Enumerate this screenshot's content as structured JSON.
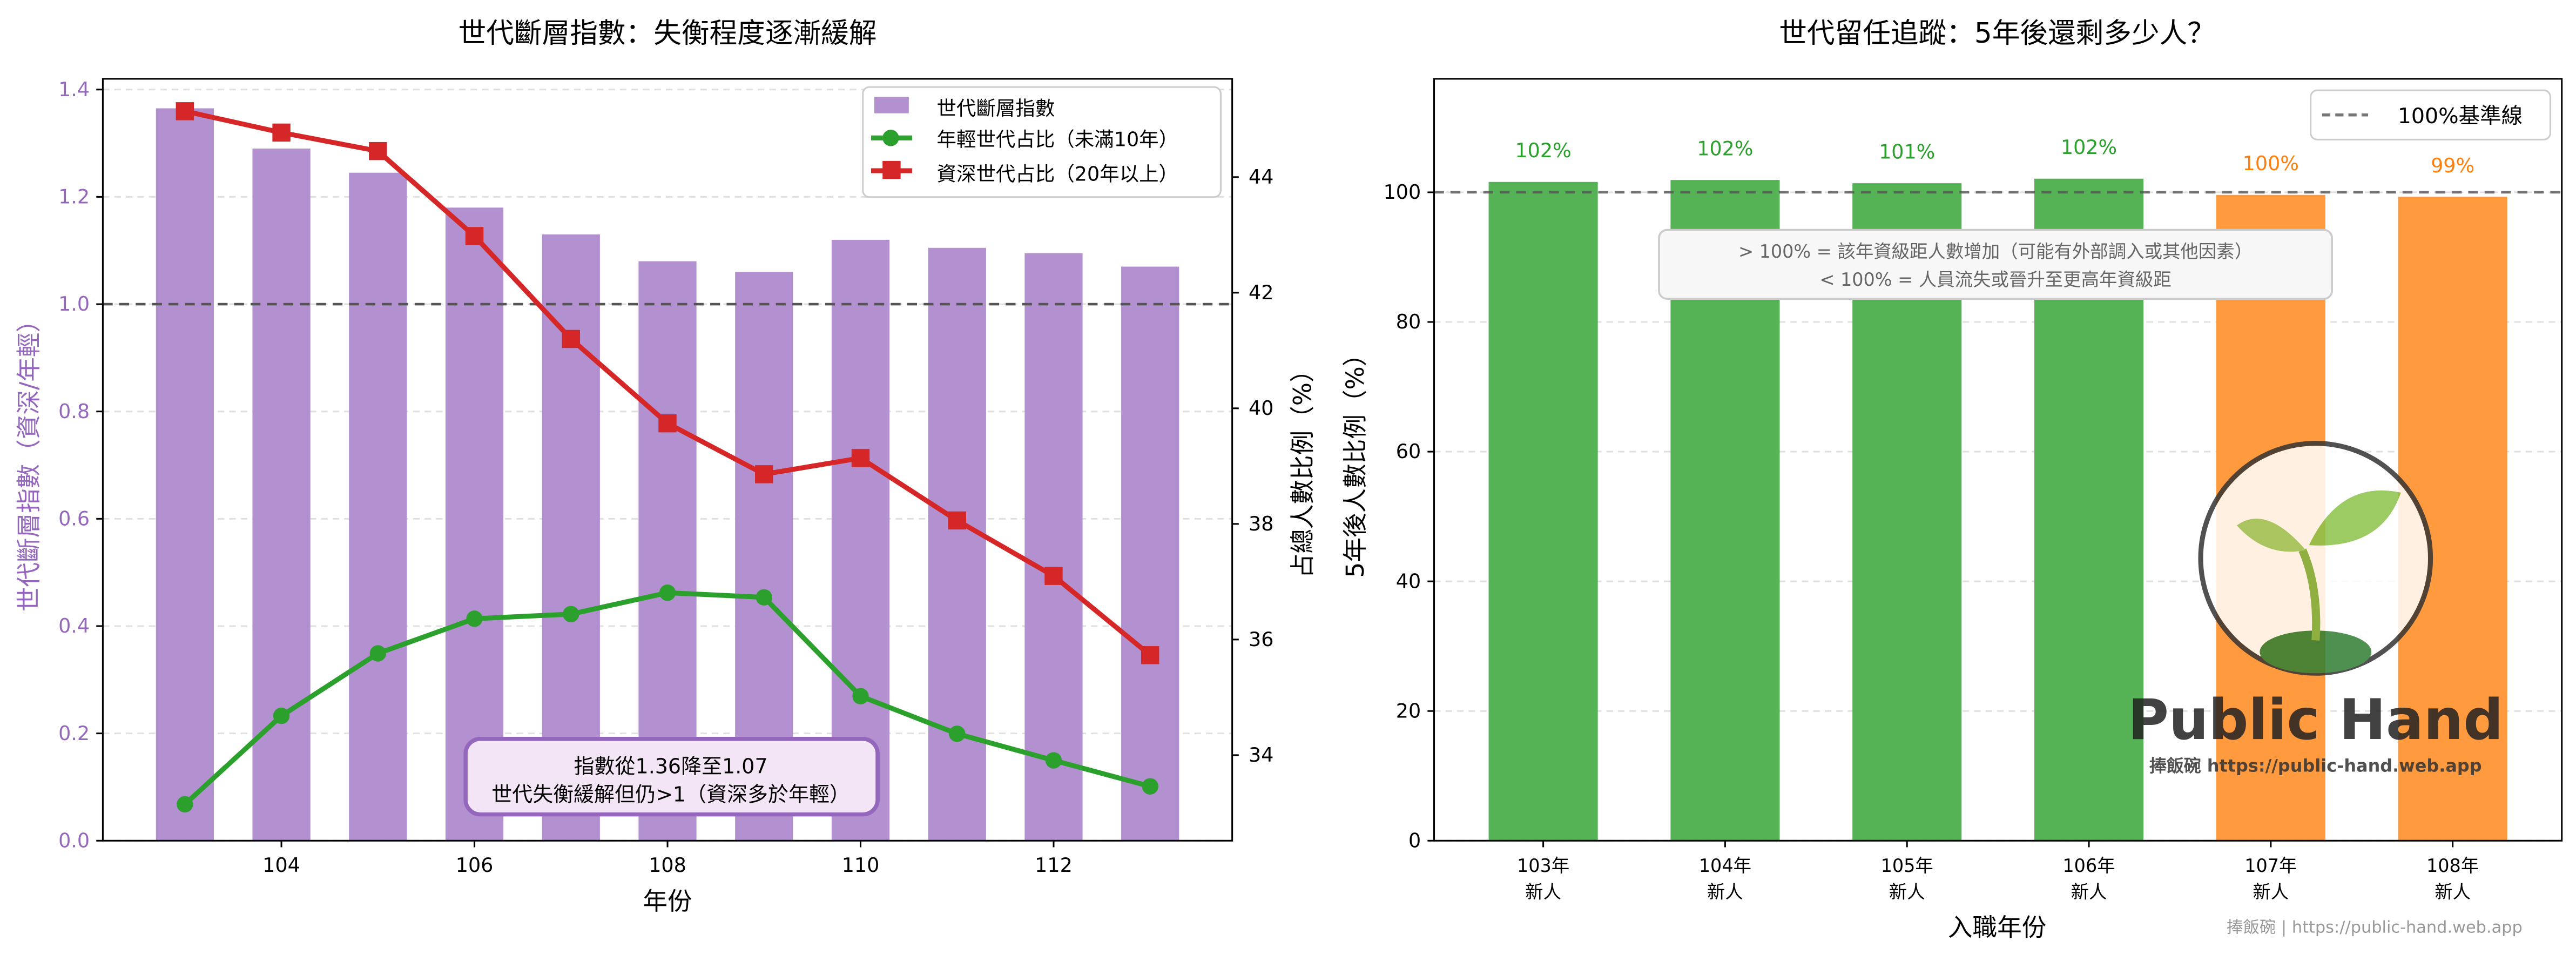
{
  "chart_data": [
    {
      "type": "bar+line",
      "title": "世代斷層指數：失衡程度逐漸緩解",
      "xlabel": "年份",
      "ylabel": "世代斷層指數（資深/年輕）",
      "y2label": "占總人數比例（%）",
      "x": [
        103,
        104,
        105,
        106,
        107,
        108,
        109,
        110,
        111,
        112,
        113
      ],
      "xlim": [
        102.15,
        113.85
      ],
      "xticks": [
        104,
        106,
        108,
        110,
        112
      ],
      "ylim": [
        0,
        1.42
      ],
      "yticks": [
        "0.0",
        "0.2",
        "0.4",
        "0.6",
        "0.8",
        "1.0",
        "1.2",
        "1.4"
      ],
      "y2lim": [
        32.52,
        45.7
      ],
      "y2ticks": [
        34,
        36,
        38,
        40,
        42,
        44
      ],
      "reference_line": 1.0,
      "grid": "y-dashed",
      "legend_position": "top-right",
      "series": [
        {
          "name": "世代斷層指數",
          "kind": "bar",
          "axis": "left",
          "color": "#b391d0",
          "values": [
            1.365,
            1.29,
            1.245,
            1.18,
            1.13,
            1.08,
            1.06,
            1.12,
            1.105,
            1.095,
            1.07
          ]
        },
        {
          "name": "年輕世代占比（未滿10年）",
          "kind": "line",
          "marker": "circle",
          "axis": "right",
          "color": "#2ca02c",
          "values": [
            33.15,
            34.68,
            35.76,
            36.36,
            36.44,
            36.81,
            36.73,
            35.02,
            34.37,
            33.91,
            33.46
          ]
        },
        {
          "name": "資深世代占比（20年以上）",
          "kind": "line",
          "marker": "square",
          "axis": "right",
          "color": "#d62728",
          "values": [
            45.14,
            44.77,
            44.45,
            42.98,
            41.2,
            39.74,
            38.86,
            39.14,
            38.06,
            37.1,
            35.73
          ]
        }
      ],
      "annotation": [
        "指數從1.36降至1.07",
        "世代失衡緩解但仍>1（資深多於年輕）"
      ]
    },
    {
      "type": "bar",
      "title": "世代留任追蹤：5年後還剩多少人？",
      "xlabel": "入職年份",
      "ylabel": "5年後人數比例（%）",
      "categories": [
        [
          "103年",
          "新人"
        ],
        [
          "104年",
          "新人"
        ],
        [
          "105年",
          "新人"
        ],
        [
          "106年",
          "新人"
        ],
        [
          "107年",
          "新人"
        ],
        [
          "108年",
          "新人"
        ]
      ],
      "values": [
        101.6,
        101.9,
        101.4,
        102.1,
        99.6,
        99.3
      ],
      "labels": [
        "102%",
        "102%",
        "101%",
        "102%",
        "100%",
        "99%"
      ],
      "colors": [
        "#55b355",
        "#55b355",
        "#55b355",
        "#55b355",
        "#ff9a3f",
        "#ff9a3f"
      ],
      "label_colors": [
        "#2ca02c",
        "#2ca02c",
        "#2ca02c",
        "#2ca02c",
        "#ff7f0e",
        "#ff7f0e"
      ],
      "ylim": [
        0,
        117.5
      ],
      "yticks": [
        0,
        20,
        40,
        60,
        80,
        100
      ],
      "reference_line": 100,
      "legend": "100%基準線",
      "legend_position": "top-right",
      "grid": "y-dashed",
      "annotation": [
        "> 100% = 該年資級距人數增加（可能有外部調入或其他因素）",
        "< 100% = 人員流失或晉升至更高年資級距"
      ]
    }
  ],
  "watermark": {
    "logo_title": "Public Hand",
    "logo_subtitle": "捧飯碗 https://public-hand.web.app"
  },
  "footer": "捧飯碗 | https://public-hand.web.app"
}
